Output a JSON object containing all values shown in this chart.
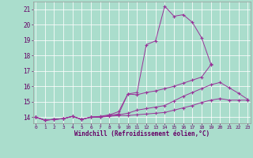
{
  "background_color": "#aaddcc",
  "line_color": "#993399",
  "grid_color": "#bbddcc",
  "xlabel": "Windchill (Refroidissement éolien,°C)",
  "xlim_min": 0,
  "xlim_max": 23,
  "ylim_min": 13.6,
  "ylim_max": 21.5,
  "yticks": [
    14,
    15,
    16,
    17,
    18,
    19,
    20,
    21
  ],
  "xticks": [
    0,
    1,
    2,
    3,
    4,
    5,
    6,
    7,
    8,
    9,
    10,
    11,
    12,
    13,
    14,
    15,
    16,
    17,
    18,
    19,
    20,
    21,
    22,
    23
  ],
  "lines": [
    {
      "x": [
        0,
        1,
        2,
        3,
        4,
        5,
        6,
        7,
        8,
        9,
        10,
        11,
        12,
        13,
        14,
        15,
        16,
        17,
        18,
        19,
        20,
        21,
        22,
        23
      ],
      "y": [
        14.0,
        13.8,
        13.85,
        13.9,
        14.05,
        13.85,
        14.0,
        14.0,
        14.05,
        14.1,
        14.1,
        14.15,
        14.2,
        14.25,
        14.3,
        14.45,
        14.6,
        14.75,
        14.95,
        15.1,
        15.2,
        15.1,
        15.1,
        15.1
      ]
    },
    {
      "x": [
        0,
        1,
        2,
        3,
        4,
        5,
        6,
        7,
        8,
        9,
        10,
        11,
        12,
        13,
        14,
        15,
        16,
        17,
        18,
        19,
        20,
        21,
        22,
        23
      ],
      "y": [
        14.0,
        13.8,
        13.85,
        13.9,
        14.05,
        13.85,
        14.0,
        14.0,
        14.1,
        14.15,
        14.25,
        14.45,
        14.55,
        14.65,
        14.75,
        15.05,
        15.35,
        15.6,
        15.85,
        16.1,
        16.25,
        15.9,
        15.55,
        15.15
      ]
    },
    {
      "x": [
        0,
        1,
        2,
        3,
        4,
        5,
        6,
        7,
        8,
        9,
        10,
        11,
        12,
        13,
        14,
        15,
        16,
        17,
        18,
        19
      ],
      "y": [
        14.0,
        13.8,
        13.85,
        13.9,
        14.05,
        13.85,
        14.0,
        14.0,
        14.1,
        14.2,
        15.5,
        15.45,
        15.6,
        15.7,
        15.85,
        16.0,
        16.2,
        16.4,
        16.6,
        17.4
      ]
    },
    {
      "x": [
        0,
        1,
        2,
        3,
        4,
        5,
        6,
        7,
        8,
        9,
        10,
        11,
        12,
        13,
        14,
        15,
        16,
        17,
        18,
        19
      ],
      "y": [
        14.0,
        13.8,
        13.85,
        13.9,
        14.05,
        13.85,
        14.0,
        14.05,
        14.15,
        14.35,
        15.5,
        15.6,
        18.7,
        18.95,
        21.2,
        20.55,
        20.65,
        20.15,
        19.15,
        17.45
      ]
    }
  ]
}
